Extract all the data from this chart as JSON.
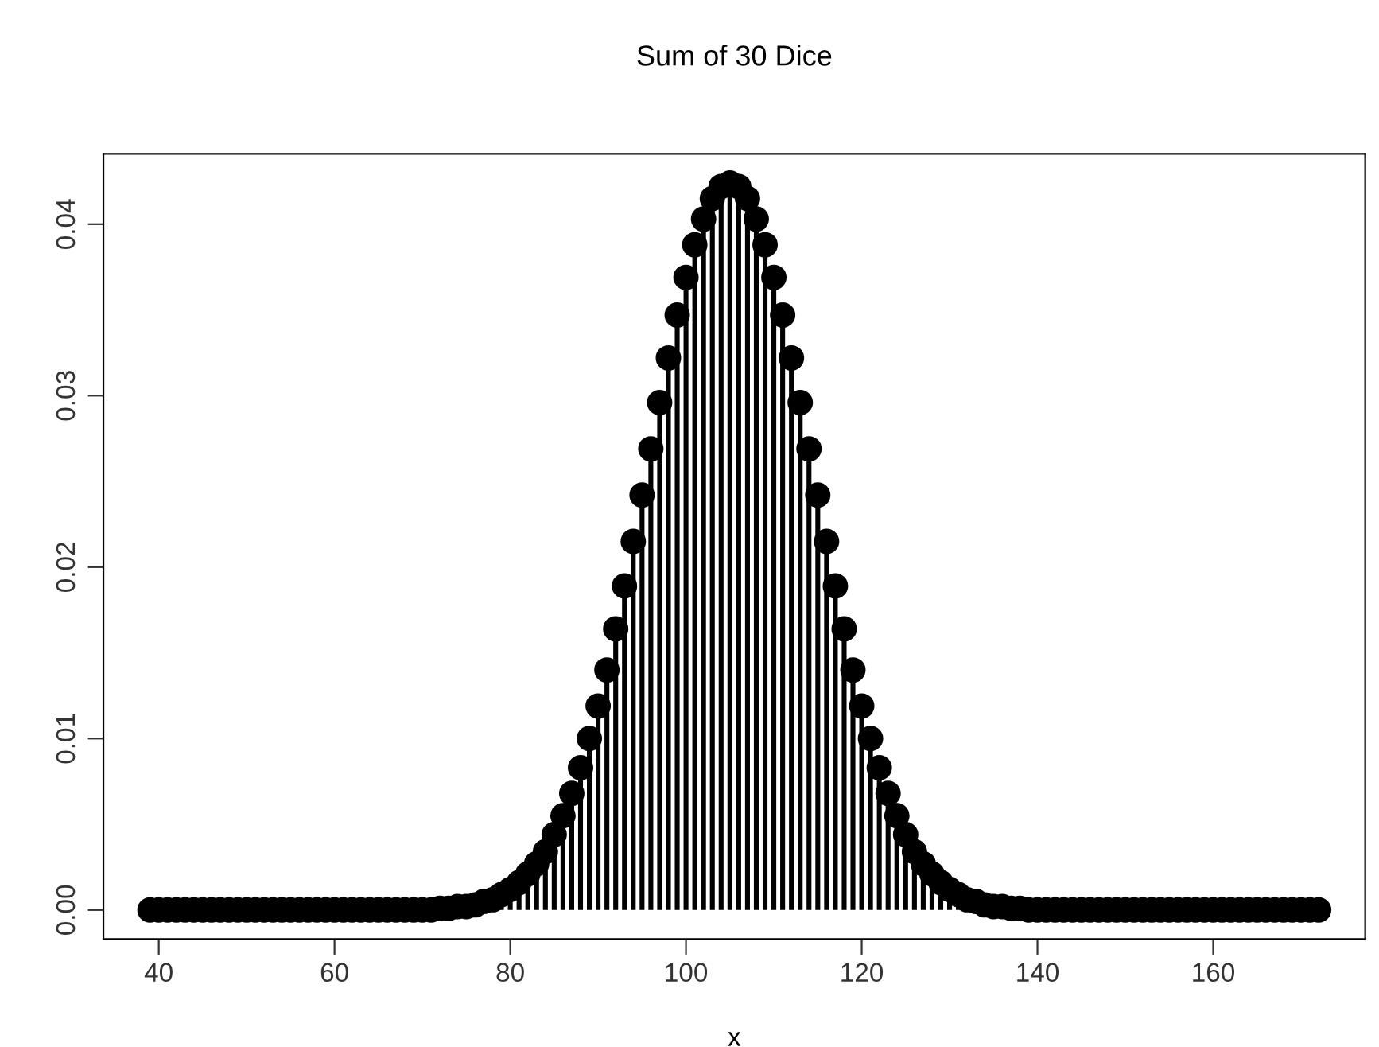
{
  "chart_data": {
    "type": "lollipop",
    "title": "Sum of 30 Dice",
    "xlabel": "x",
    "x": [
      39,
      40,
      41,
      42,
      43,
      44,
      45,
      46,
      47,
      48,
      49,
      50,
      51,
      52,
      53,
      54,
      55,
      56,
      57,
      58,
      59,
      60,
      61,
      62,
      63,
      64,
      65,
      66,
      67,
      68,
      69,
      70,
      71,
      72,
      73,
      74,
      75,
      76,
      77,
      78,
      79,
      80,
      81,
      82,
      83,
      84,
      85,
      86,
      87,
      88,
      89,
      90,
      91,
      92,
      93,
      94,
      95,
      96,
      97,
      98,
      99,
      100,
      101,
      102,
      103,
      104,
      105,
      106,
      107,
      108,
      109,
      110,
      111,
      112,
      113,
      114,
      115,
      116,
      117,
      118,
      119,
      120,
      121,
      122,
      123,
      124,
      125,
      126,
      127,
      128,
      129,
      130,
      131,
      132,
      133,
      134,
      135,
      136,
      137,
      138,
      139,
      140,
      141,
      142,
      143,
      144,
      145,
      146,
      147,
      148,
      149,
      150,
      151,
      152,
      153,
      154,
      155,
      156,
      157,
      158,
      159,
      160,
      161,
      162,
      163,
      164,
      165,
      166,
      167,
      168,
      169,
      170,
      171,
      172
    ],
    "values": [
      0,
      0,
      0,
      0,
      0,
      0,
      0,
      0,
      0,
      0,
      0,
      0,
      0,
      0,
      0,
      0,
      0,
      0,
      0,
      0,
      0,
      0,
      0,
      0,
      0,
      0,
      0,
      0,
      0,
      0,
      0,
      0,
      0,
      0.0001,
      0.0001,
      0.0002,
      0.0002,
      0.0003,
      0.0005,
      0.0006,
      0.0009,
      0.0012,
      0.0016,
      0.0021,
      0.0027,
      0.0034,
      0.0044,
      0.0055,
      0.0068,
      0.0083,
      0.01,
      0.0119,
      0.014,
      0.0164,
      0.0189,
      0.0215,
      0.0242,
      0.0269,
      0.0296,
      0.0322,
      0.0347,
      0.0369,
      0.0388,
      0.0403,
      0.0415,
      0.0422,
      0.0424,
      0.0422,
      0.0415,
      0.0403,
      0.0388,
      0.0369,
      0.0347,
      0.0322,
      0.0296,
      0.0269,
      0.0242,
      0.0215,
      0.0189,
      0.0164,
      0.014,
      0.0119,
      0.01,
      0.0083,
      0.0068,
      0.0055,
      0.0044,
      0.0034,
      0.0027,
      0.0021,
      0.0016,
      0.0012,
      0.0009,
      0.0006,
      0.0005,
      0.0003,
      0.0002,
      0.0002,
      0.0001,
      0.0001,
      0,
      0,
      0,
      0,
      0,
      0,
      0,
      0,
      0,
      0,
      0,
      0,
      0,
      0,
      0,
      0,
      0,
      0,
      0,
      0,
      0,
      0,
      0,
      0,
      0,
      0,
      0,
      0,
      0,
      0,
      0,
      0,
      0,
      0
    ],
    "color": "#000000",
    "marker": "circle",
    "xlim": [
      33.7,
      177.3
    ],
    "xticks": [
      40,
      60,
      80,
      100,
      120,
      140,
      160
    ],
    "ylim": [
      -0.0017,
      0.0441
    ],
    "yticks": [
      {
        "value": 0,
        "label": "0.00"
      },
      {
        "value": 0.01,
        "label": "0.01"
      },
      {
        "value": 0.02,
        "label": "0.02"
      },
      {
        "value": 0.03,
        "label": "0.03"
      },
      {
        "value": 0.04,
        "label": "0.04"
      }
    ]
  }
}
